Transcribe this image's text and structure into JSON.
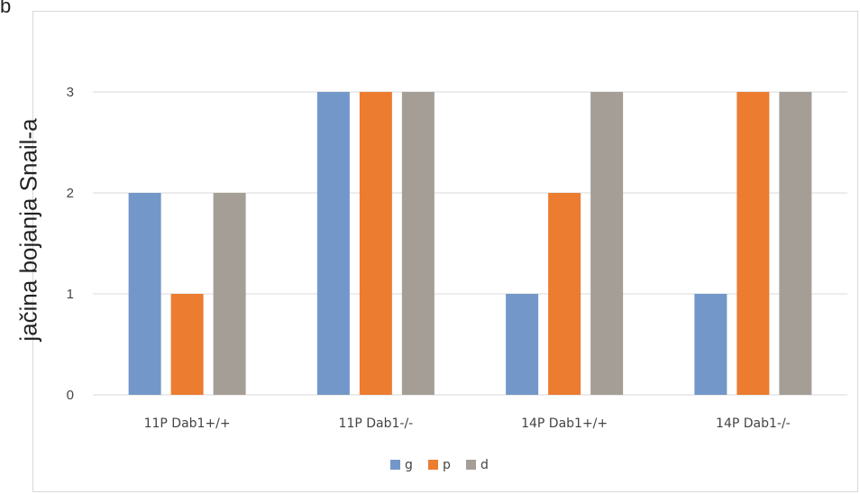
{
  "panel_letter": "b",
  "chart_data": {
    "type": "bar",
    "title": "",
    "xlabel": "",
    "ylabel": "jačina bojanja Snail-a",
    "categories": [
      "11P Dab1+/+",
      "11P Dab1-/-",
      "14P Dab1+/+",
      "14P Dab1-/-"
    ],
    "series": [
      {
        "name": "g",
        "values": [
          2,
          3,
          1,
          1
        ],
        "color": "#7297c8"
      },
      {
        "name": "p",
        "values": [
          1,
          3,
          2,
          3
        ],
        "color": "#ec7c30"
      },
      {
        "name": "d",
        "values": [
          2,
          3,
          3,
          3
        ],
        "color": "#a59e96"
      }
    ],
    "ylim": [
      0,
      3
    ],
    "yticks": [
      0,
      1,
      2,
      3
    ],
    "grid": true,
    "legend_position": "bottom"
  }
}
